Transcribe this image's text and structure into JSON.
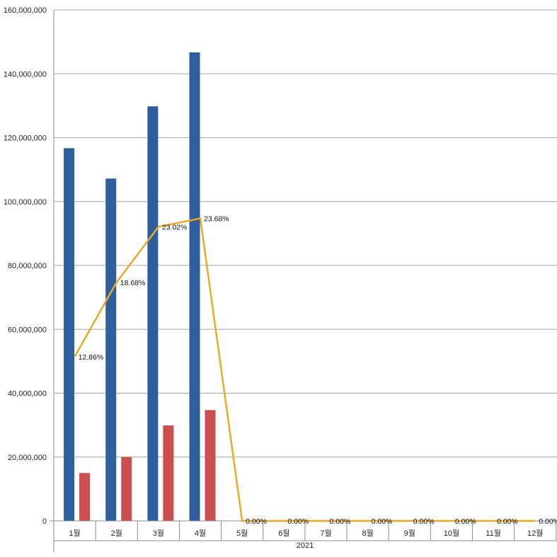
{
  "chart_data": {
    "type": "bar",
    "title": "",
    "xlabel": "",
    "ylabel": "",
    "group_label": "2021",
    "categories": [
      "1월",
      "2월",
      "3월",
      "4월",
      "5월",
      "6월",
      "7월",
      "8월",
      "9월",
      "10월",
      "11월",
      "12월"
    ],
    "y_ticks": [
      "0",
      "20,000,000",
      "40,000,000",
      "60,000,000",
      "80,000,000",
      "100,000,000",
      "120,000,000",
      "140,000,000",
      "160,000,000"
    ],
    "ylim": [
      0,
      160000000
    ],
    "grid": true,
    "legend": "none",
    "series": [
      {
        "type": "bar",
        "color": "#2e5e9c",
        "values": [
          116700000,
          107200000,
          129800000,
          146700000,
          0,
          0,
          0,
          0,
          0,
          0,
          0,
          0
        ]
      },
      {
        "type": "bar",
        "color": "#c9504e",
        "values": [
          15000000,
          20000000,
          29900000,
          34700000,
          0,
          0,
          0,
          0,
          0,
          0,
          0,
          0
        ]
      },
      {
        "type": "line",
        "color": "#e6aa2a",
        "percent_labels": [
          "12.86%",
          "18.68%",
          "23.02%",
          "23.68%",
          "0.00%",
          "0.00%",
          "0.00%",
          "0.00%",
          "0.00%",
          "0.00%",
          "0.00%",
          "0.00%"
        ],
        "values": [
          12.86,
          18.68,
          23.02,
          23.68,
          0,
          0,
          0,
          0,
          0,
          0,
          0,
          0
        ]
      }
    ]
  }
}
